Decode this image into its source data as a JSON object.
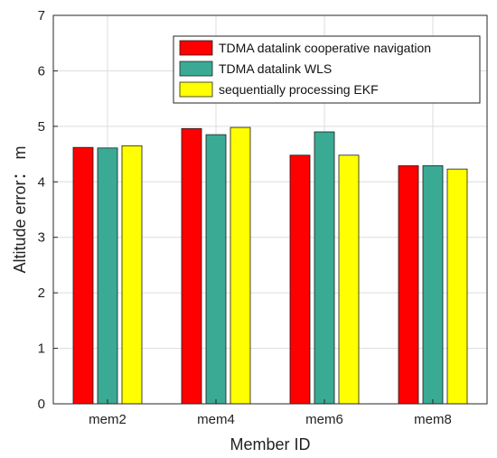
{
  "chart_data": {
    "type": "bar",
    "categories": [
      "mem2",
      "mem4",
      "mem6",
      "mem8"
    ],
    "series": [
      {
        "name": "TDMA datalink cooperative navigation",
        "color": "#ff0000",
        "values": [
          4.62,
          4.96,
          4.48,
          4.29
        ]
      },
      {
        "name": "TDMA datalink WLS",
        "color": "#3aaa95",
        "values": [
          4.61,
          4.85,
          4.9,
          4.29
        ]
      },
      {
        "name": "sequentially processing EKF",
        "color": "#ffff00",
        "values": [
          4.65,
          4.98,
          4.48,
          4.23
        ]
      }
    ],
    "xlabel": "Member ID",
    "ylabel": "Altitude  error： m",
    "ylim": [
      0,
      7
    ],
    "yticks": [
      "0",
      "1",
      "2",
      "3",
      "4",
      "5",
      "6",
      "7"
    ],
    "grid": true,
    "legend_position": "top-right"
  }
}
